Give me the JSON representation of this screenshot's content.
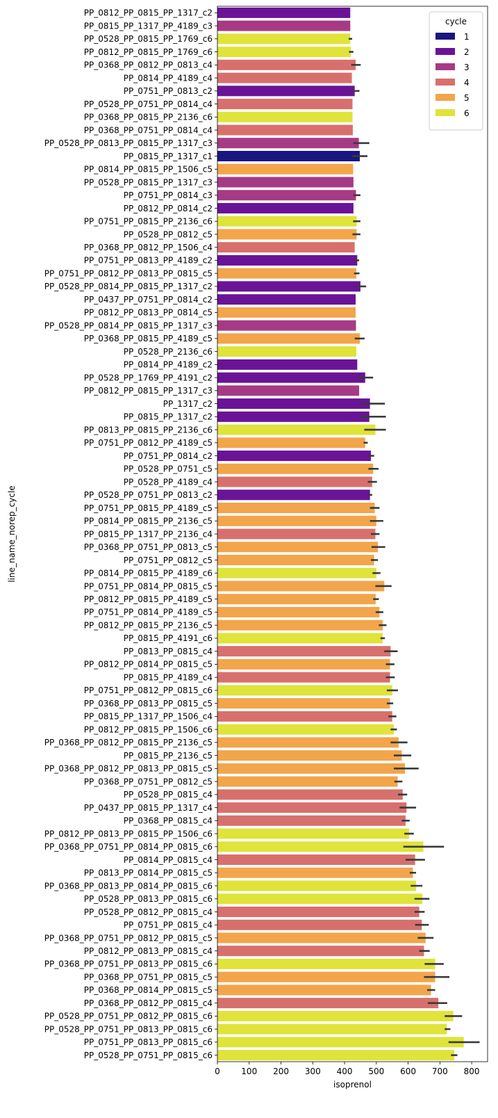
{
  "chart_data": {
    "type": "bar",
    "orientation": "horizontal",
    "xlabel": "isoprenol",
    "ylabel": "line_name_norep_cycle",
    "xlim": [
      0,
      850
    ],
    "xticks": [
      0,
      100,
      200,
      300,
      400,
      500,
      600,
      700,
      800
    ],
    "grid": false,
    "legend": {
      "title": "cycle",
      "placement": "top-right",
      "entries": [
        {
          "label": "1",
          "color": "#1a1680"
        },
        {
          "label": "2",
          "color": "#6a1397"
        },
        {
          "label": "3",
          "color": "#a63a85"
        },
        {
          "label": "4",
          "color": "#d7706c"
        },
        {
          "label": "5",
          "color": "#f2a54a"
        },
        {
          "label": "6",
          "color": "#dfe33a"
        }
      ]
    },
    "error_color": "#3a3a3a",
    "bars": [
      {
        "label": "PP_0812_PP_0815_PP_1317_c2",
        "value": 418,
        "cycle": "2"
      },
      {
        "label": "PP_0815_PP_1317_PP_4189_c3",
        "value": 418,
        "cycle": "3"
      },
      {
        "label": "PP_0528_PP_0815_PP_1769_c6",
        "value": 418,
        "cycle": "6",
        "err": [
          413,
          424
        ]
      },
      {
        "label": "PP_0812_PP_0815_PP_1769_c6",
        "value": 420,
        "cycle": "6",
        "err": [
          414,
          428
        ]
      },
      {
        "label": "PP_0368_PP_0812_PP_0813_c4",
        "value": 435,
        "cycle": "4",
        "err": [
          421,
          451
        ]
      },
      {
        "label": "PP_0814_PP_4189_c4",
        "value": 423,
        "cycle": "4"
      },
      {
        "label": "PP_0751_PP_0813_c2",
        "value": 432,
        "cycle": "2",
        "err": [
          420,
          447
        ]
      },
      {
        "label": "PP_0528_PP_0751_PP_0814_c4",
        "value": 425,
        "cycle": "4"
      },
      {
        "label": "PP_0368_PP_0815_PP_2136_c6",
        "value": 425,
        "cycle": "6"
      },
      {
        "label": "PP_0368_PP_0751_PP_0814_c4",
        "value": 426,
        "cycle": "4"
      },
      {
        "label": "PP_0528_PP_0813_PP_0815_PP_1317_c3",
        "value": 445,
        "cycle": "3",
        "err": [
          428,
          478
        ]
      },
      {
        "label": "PP_0815_PP_1317_c1",
        "value": 448,
        "cycle": "1",
        "err": [
          424,
          472
        ]
      },
      {
        "label": "PP_0814_PP_0815_PP_1506_c5",
        "value": 427,
        "cycle": "5"
      },
      {
        "label": "PP_0528_PP_0815_PP_1317_c3",
        "value": 428,
        "cycle": "3"
      },
      {
        "label": "PP_0751_PP_0814_c3",
        "value": 436,
        "cycle": "3",
        "err": [
          428,
          450
        ]
      },
      {
        "label": "PP_0812_PP_0814_c2",
        "value": 428,
        "cycle": "2"
      },
      {
        "label": "PP_0751_PP_0815_PP_2136_c6",
        "value": 438,
        "cycle": "6",
        "err": [
          427,
          450
        ]
      },
      {
        "label": "PP_0528_PP_0812_c5",
        "value": 438,
        "cycle": "5",
        "err": [
          425,
          450
        ]
      },
      {
        "label": "PP_0368_PP_0812_PP_1506_c4",
        "value": 432,
        "cycle": "4"
      },
      {
        "label": "PP_0751_PP_0813_PP_4189_c2",
        "value": 440,
        "cycle": "2",
        "err": [
          433,
          446
        ]
      },
      {
        "label": "PP_0751_PP_0812_PP_0813_PP_0815_c5",
        "value": 437,
        "cycle": "5",
        "err": [
          430,
          447
        ]
      },
      {
        "label": "PP_0528_PP_0814_PP_0815_PP_1317_c2",
        "value": 450,
        "cycle": "2",
        "err": [
          436,
          468
        ]
      },
      {
        "label": "PP_0437_PP_0751_PP_0814_c2",
        "value": 435,
        "cycle": "2"
      },
      {
        "label": "PP_0812_PP_0813_PP_0814_c5",
        "value": 435,
        "cycle": "5"
      },
      {
        "label": "PP_0528_PP_0814_PP_0815_PP_1317_c3",
        "value": 436,
        "cycle": "3"
      },
      {
        "label": "PP_0368_PP_0815_PP_4189_c5",
        "value": 448,
        "cycle": "5",
        "err": [
          432,
          463
        ]
      },
      {
        "label": "PP_0528_PP_2136_c6",
        "value": 437,
        "cycle": "6"
      },
      {
        "label": "PP_0814_PP_4189_c2",
        "value": 440,
        "cycle": "2"
      },
      {
        "label": "PP_0528_PP_1769_PP_4191_c2",
        "value": 465,
        "cycle": "2",
        "err": [
          440,
          490
        ]
      },
      {
        "label": "PP_0812_PP_0815_PP_1317_c3",
        "value": 446,
        "cycle": "3"
      },
      {
        "label": "PP_1317_c2",
        "value": 480,
        "cycle": "2",
        "err": [
          450,
          527
        ]
      },
      {
        "label": "PP_0815_PP_1317_c2",
        "value": 478,
        "cycle": "2",
        "err": [
          450,
          530
        ]
      },
      {
        "label": "PP_0813_PP_0815_PP_2136_c6",
        "value": 497,
        "cycle": "6",
        "err": [
          462,
          530
        ]
      },
      {
        "label": "PP_0751_PP_0812_PP_4189_c5",
        "value": 465,
        "cycle": "5",
        "err": [
          460,
          473
        ]
      },
      {
        "label": "PP_0751_PP_0814_c2",
        "value": 483,
        "cycle": "2",
        "err": [
          475,
          493
        ]
      },
      {
        "label": "PP_0528_PP_0751_c5",
        "value": 490,
        "cycle": "5",
        "err": [
          475,
          507
        ]
      },
      {
        "label": "PP_0528_PP_4189_c4",
        "value": 487,
        "cycle": "4",
        "err": [
          473,
          502
        ]
      },
      {
        "label": "PP_0528_PP_0751_PP_0813_c2",
        "value": 480,
        "cycle": "2",
        "err": [
          474,
          487
        ]
      },
      {
        "label": "PP_0751_PP_0815_PP_4189_c5",
        "value": 495,
        "cycle": "5",
        "err": [
          480,
          510
        ]
      },
      {
        "label": "PP_0814_PP_0815_PP_2136_c5",
        "value": 500,
        "cycle": "5",
        "err": [
          480,
          522
        ]
      },
      {
        "label": "PP_0815_PP_1317_PP_2136_c4",
        "value": 497,
        "cycle": "4",
        "err": [
          483,
          510
        ]
      },
      {
        "label": "PP_0368_PP_0751_PP_0813_c5",
        "value": 505,
        "cycle": "5",
        "err": [
          485,
          528
        ]
      },
      {
        "label": "PP_0751_PP_0812_c5",
        "value": 493,
        "cycle": "5",
        "err": [
          483,
          505
        ]
      },
      {
        "label": "PP_0814_PP_0815_PP_4189_c6",
        "value": 500,
        "cycle": "6",
        "err": [
          488,
          513
        ]
      },
      {
        "label": "PP_0751_PP_0814_PP_0815_c5",
        "value": 525,
        "cycle": "5",
        "err": [
          497,
          548
        ]
      },
      {
        "label": "PP_0812_PP_0815_PP_4189_c5",
        "value": 498,
        "cycle": "5",
        "err": [
          490,
          508
        ]
      },
      {
        "label": "PP_0751_PP_0814_PP_4189_c5",
        "value": 510,
        "cycle": "5",
        "err": [
          498,
          522
        ]
      },
      {
        "label": "PP_0812_PP_0815_PP_2136_c5",
        "value": 520,
        "cycle": "5",
        "err": [
          508,
          532
        ]
      },
      {
        "label": "PP_0815_PP_4191_c6",
        "value": 520,
        "cycle": "6",
        "err": [
          513,
          527
        ]
      },
      {
        "label": "PP_0813_PP_0815_c4",
        "value": 545,
        "cycle": "4",
        "err": [
          525,
          567
        ]
      },
      {
        "label": "PP_0812_PP_0814_PP_0815_c5",
        "value": 543,
        "cycle": "5",
        "err": [
          530,
          557
        ]
      },
      {
        "label": "PP_0815_PP_4189_c4",
        "value": 543,
        "cycle": "4",
        "err": [
          530,
          558
        ]
      },
      {
        "label": "PP_0751_PP_0812_PP_0815_c6",
        "value": 550,
        "cycle": "6",
        "err": [
          533,
          568
        ]
      },
      {
        "label": "PP_0368_PP_0813_PP_0815_c5",
        "value": 543,
        "cycle": "5",
        "err": [
          533,
          553
        ]
      },
      {
        "label": "PP_0815_PP_1317_PP_1506_c4",
        "value": 550,
        "cycle": "4",
        "err": [
          538,
          563
        ]
      },
      {
        "label": "PP_0812_PP_0815_PP_1506_c6",
        "value": 555,
        "cycle": "6",
        "err": [
          545,
          565
        ]
      },
      {
        "label": "PP_0368_PP_0812_PP_0815_PP_2136_c5",
        "value": 570,
        "cycle": "5",
        "err": [
          545,
          598
        ]
      },
      {
        "label": "PP_0815_PP_2136_c5",
        "value": 580,
        "cycle": "5",
        "err": [
          555,
          610
        ]
      },
      {
        "label": "PP_0368_PP_0812_PP_0813_PP_0815_c5",
        "value": 590,
        "cycle": "5",
        "err": [
          555,
          633
        ]
      },
      {
        "label": "PP_0368_PP_0751_PP_0812_c5",
        "value": 567,
        "cycle": "5",
        "err": [
          557,
          582
        ]
      },
      {
        "label": "PP_0528_PP_0815_c4",
        "value": 583,
        "cycle": "4",
        "err": [
          568,
          597
        ]
      },
      {
        "label": "PP_0437_PP_0815_PP_1317_c4",
        "value": 595,
        "cycle": "4",
        "err": [
          573,
          625
        ]
      },
      {
        "label": "PP_0368_PP_0815_c4",
        "value": 592,
        "cycle": "4",
        "err": [
          580,
          605
        ]
      },
      {
        "label": "PP_0812_PP_0813_PP_0815_PP_1506_c6",
        "value": 603,
        "cycle": "6",
        "err": [
          588,
          618
        ]
      },
      {
        "label": "PP_0368_PP_0751_PP_0814_PP_0815_c6",
        "value": 648,
        "cycle": "6",
        "err": [
          585,
          713
        ]
      },
      {
        "label": "PP_0814_PP_0815_c4",
        "value": 622,
        "cycle": "4",
        "err": [
          592,
          653
        ]
      },
      {
        "label": "PP_0813_PP_0814_PP_0815_c5",
        "value": 615,
        "cycle": "5",
        "err": [
          605,
          625
        ]
      },
      {
        "label": "PP_0368_PP_0813_PP_0814_PP_0815_c6",
        "value": 625,
        "cycle": "6",
        "err": [
          608,
          645
        ]
      },
      {
        "label": "PP_0528_PP_0813_PP_0815_c6",
        "value": 645,
        "cycle": "6",
        "err": [
          620,
          667
        ]
      },
      {
        "label": "PP_0528_PP_0812_PP_0815_c4",
        "value": 635,
        "cycle": "4",
        "err": [
          620,
          652
        ]
      },
      {
        "label": "PP_0751_PP_0815_c4",
        "value": 643,
        "cycle": "4",
        "err": [
          622,
          665
        ]
      },
      {
        "label": "PP_0368_PP_0751_PP_0812_PP_0815_c5",
        "value": 655,
        "cycle": "5",
        "err": [
          630,
          680
        ]
      },
      {
        "label": "PP_0812_PP_0813_PP_0815_c4",
        "value": 650,
        "cycle": "4",
        "err": [
          635,
          668
        ]
      },
      {
        "label": "PP_0368_PP_0751_PP_0813_PP_0815_c6",
        "value": 685,
        "cycle": "6",
        "err": [
          652,
          712
        ]
      },
      {
        "label": "PP_0368_PP_0751_PP_0815_c5",
        "value": 685,
        "cycle": "5",
        "err": [
          650,
          730
        ]
      },
      {
        "label": "PP_0368_PP_0814_PP_0815_c5",
        "value": 672,
        "cycle": "5",
        "err": [
          660,
          685
        ]
      },
      {
        "label": "PP_0368_PP_0812_PP_0815_c4",
        "value": 695,
        "cycle": "4",
        "err": [
          662,
          723
        ]
      },
      {
        "label": "PP_0528_PP_0751_PP_0812_PP_0815_c6",
        "value": 742,
        "cycle": "6",
        "err": [
          715,
          770
        ]
      },
      {
        "label": "PP_0528_PP_0751_PP_0813_PP_0815_c6",
        "value": 722,
        "cycle": "6",
        "err": [
          715,
          733
        ]
      },
      {
        "label": "PP_0751_PP_0813_PP_0815_c6",
        "value": 775,
        "cycle": "6",
        "err": [
          727,
          825
        ]
      },
      {
        "label": "PP_0528_PP_0751_PP_0815_c6",
        "value": 745,
        "cycle": "6",
        "err": [
          735,
          755
        ]
      }
    ]
  }
}
